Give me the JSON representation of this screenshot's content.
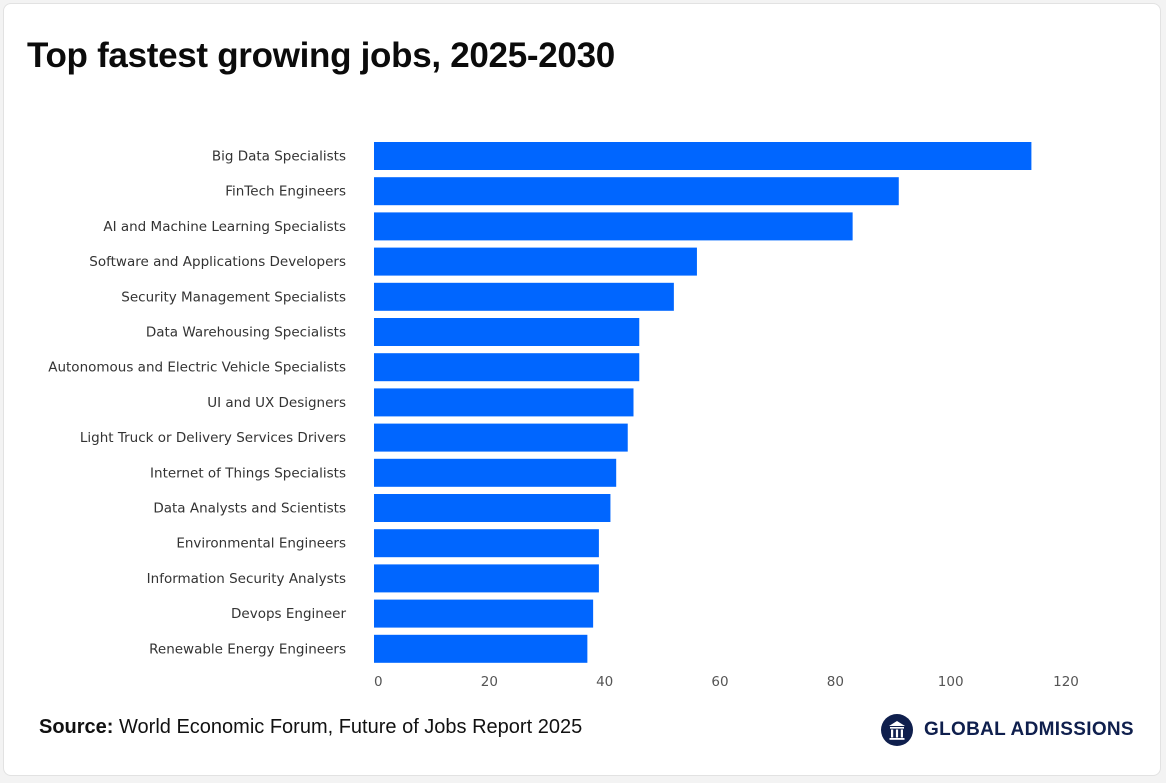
{
  "source": {
    "label": "Source:",
    "text": " World Economic Forum, Future of Jobs Report 2025"
  },
  "brand": {
    "name": "GLOBAL ADMISSIONS",
    "logo_icon": "columns-building-icon",
    "color": "#0f1f4d"
  },
  "chart_data": {
    "type": "bar",
    "orientation": "horizontal",
    "title": "Top fastest growing jobs, 2025-2030",
    "xlabel": "",
    "ylabel": "",
    "xlim": [
      0,
      120
    ],
    "xticks": [
      0,
      20,
      40,
      60,
      80,
      100,
      120
    ],
    "grid": false,
    "bar_color": "#0066ff",
    "categories": [
      "Big Data Specialists",
      "FinTech Engineers",
      "AI and Machine Learning Specialists",
      "Software and Applications Developers",
      "Security Management Specialists",
      "Data Warehousing Specialists",
      "Autonomous and Electric Vehicle Specialists",
      "UI and UX Designers",
      "Light Truck or Delivery Services Drivers",
      "Internet of Things Specialists",
      "Data Analysts and Scientists",
      "Environmental Engineers",
      "Information Security Analysts",
      "Devops Engineer",
      "Renewable Energy Engineers"
    ],
    "values": [
      114,
      91,
      83,
      56,
      52,
      46,
      46,
      45,
      44,
      42,
      41,
      39,
      39,
      38,
      37
    ]
  }
}
